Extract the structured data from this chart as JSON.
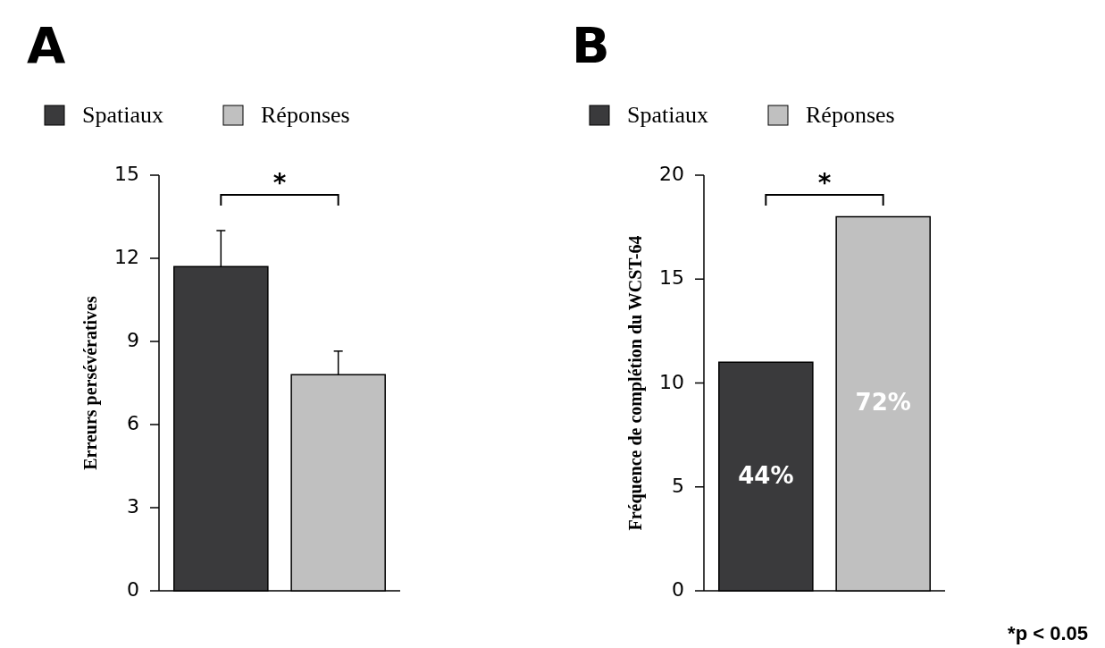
{
  "chart_data": [
    {
      "type": "bar",
      "title": "A",
      "ylabel": "Erreurs persévératives",
      "categories": [
        null
      ],
      "series": [
        {
          "name": "Spatiaux",
          "color": "#3a3a3c",
          "values": [
            11.7
          ],
          "errors": [
            [
              11.7,
              13.0
            ]
          ]
        },
        {
          "name": "Réponses",
          "color": "#c0c0c0",
          "values": [
            7.8
          ],
          "errors": [
            [
              7.8,
              8.65
            ]
          ]
        }
      ],
      "ylim": [
        0,
        15
      ],
      "yticks": [
        0,
        3,
        6,
        9,
        12,
        15
      ],
      "legend": "top left",
      "annotations": [
        "*"
      ]
    },
    {
      "type": "bar",
      "title": "B",
      "ylabel": "Fréquence de complétion du WCST-64",
      "categories": [
        null
      ],
      "series": [
        {
          "name": "Spatiaux",
          "color": "#3a3a3c",
          "values": [
            11
          ]
        },
        {
          "name": "Réponses",
          "color": "#c0c0c0",
          "values": [
            18
          ]
        }
      ],
      "ylim": [
        0,
        20
      ],
      "yticks": [
        0,
        5,
        10,
        15,
        20
      ],
      "legend": "top left",
      "annotations": [
        "*",
        "*p < 0.05",
        "44%",
        "72%"
      ]
    }
  ]
}
